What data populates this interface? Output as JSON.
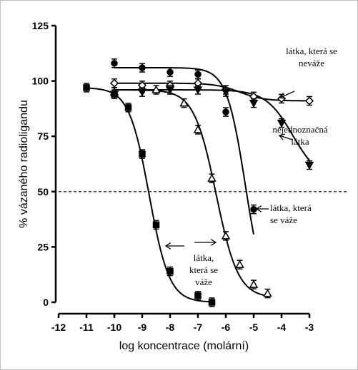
{
  "chart_data": {
    "type": "scatter",
    "xlabel": "log koncentrace (molární)",
    "ylabel": "% vázaného radioligandu",
    "xlim": [
      -12,
      -3
    ],
    "ylim": [
      0,
      125
    ],
    "x_ticks": [
      "-12",
      "-11",
      "-10",
      "-9",
      "-8",
      "-7",
      "-6",
      "-5",
      "-4",
      "-3"
    ],
    "y_ticks": [
      "0",
      "25",
      "50",
      "75",
      "100",
      "125"
    ],
    "reference_line": {
      "y": 50,
      "style": "dashed"
    },
    "series": [
      {
        "marker": "square",
        "points": [
          [
            -11,
            97
          ],
          [
            -10,
            94
          ],
          [
            -9.5,
            88
          ],
          [
            -9,
            67
          ],
          [
            -8.5,
            35
          ],
          [
            -8,
            14
          ],
          [
            -7,
            3
          ],
          [
            -6.5,
            0
          ]
        ],
        "curve": {
          "bottom": 0,
          "top": 97,
          "logIC50": -8.75,
          "hill": 1.2
        }
      },
      {
        "marker": "triangle-open",
        "points": [
          [
            -10,
            95
          ],
          [
            -9,
            97
          ],
          [
            -8.5,
            96
          ],
          [
            -7.5,
            90
          ],
          [
            -7,
            78
          ],
          [
            -6.5,
            56
          ],
          [
            -6,
            30
          ],
          [
            -5.5,
            17
          ],
          [
            -5,
            8
          ],
          [
            -4.5,
            4
          ]
        ],
        "curve": {
          "bottom": 2,
          "top": 96,
          "logIC50": -6.35,
          "hill": 1.1
        }
      },
      {
        "marker": "circle",
        "points": [
          [
            -10,
            108
          ],
          [
            -9,
            106
          ],
          [
            -8,
            104
          ],
          [
            -7,
            103
          ],
          [
            -6,
            86
          ],
          [
            -5,
            42
          ]
        ],
        "curve": {
          "bottom": 0,
          "top": 106,
          "logIC50": -5.3,
          "hill": 1.3
        }
      },
      {
        "marker": "diamond-open",
        "points": [
          [
            -10,
            99
          ],
          [
            -9,
            98
          ],
          [
            -8,
            98
          ],
          [
            -7,
            99
          ],
          [
            -6,
            96
          ],
          [
            -5,
            93
          ],
          [
            -4,
            92
          ],
          [
            -3,
            91
          ]
        ],
        "curve": {
          "bottom": 91,
          "top": 99,
          "logIC50": -5.5,
          "hill": 1.0
        }
      },
      {
        "marker": "triangle-down",
        "points": [
          [
            -10,
            94
          ],
          [
            -9,
            95
          ],
          [
            -8,
            96
          ],
          [
            -7,
            96
          ],
          [
            -6,
            95
          ],
          [
            -5,
            90
          ],
          [
            -4,
            81
          ],
          [
            -3,
            62
          ]
        ],
        "curve": {
          "bottom": 55,
          "top": 96,
          "logIC50": -3.6,
          "hill": 0.9
        }
      }
    ],
    "annotations": [
      {
        "lines": [
          "látka, která se",
          "neváže"
        ]
      },
      {
        "lines": [
          "nejednoznačná",
          "látka"
        ]
      },
      {
        "lines": [
          "látka, která",
          "se váže"
        ]
      },
      {
        "lines": [
          "látka,",
          "která  se",
          "váže"
        ]
      }
    ]
  }
}
